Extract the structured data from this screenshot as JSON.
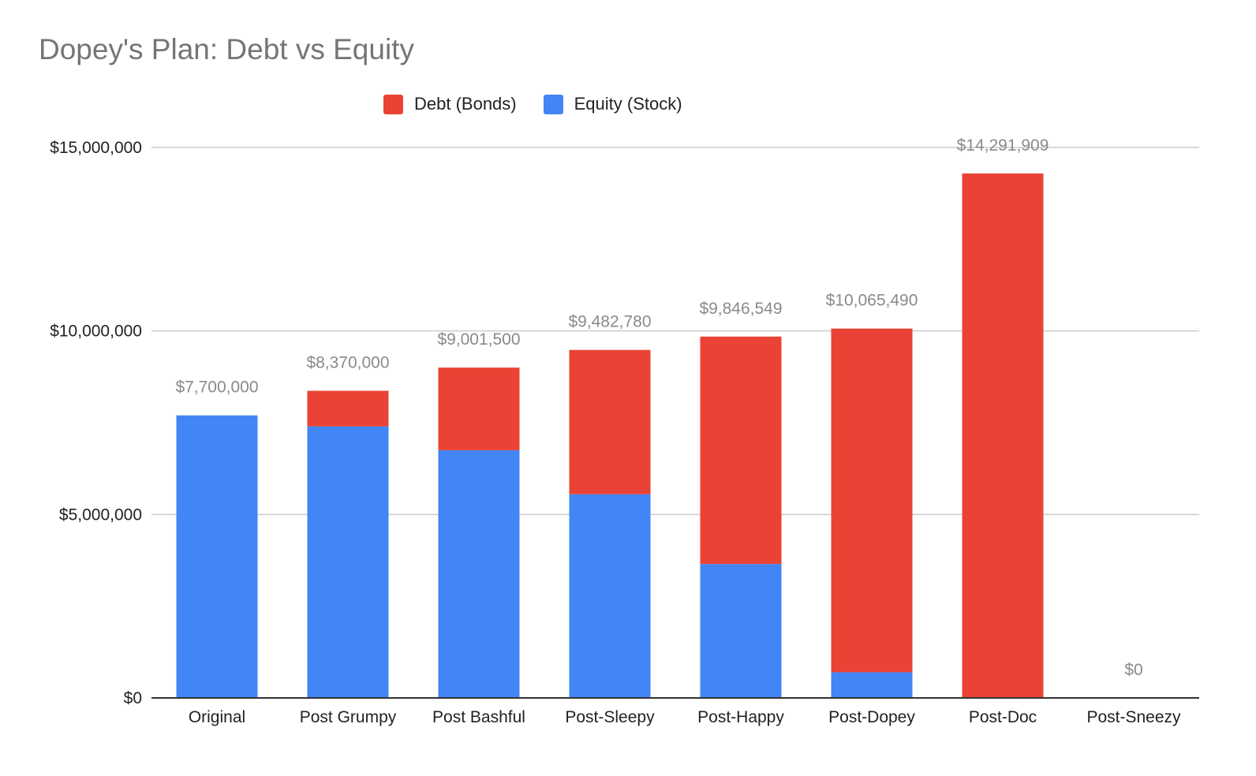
{
  "chart_data": {
    "type": "bar",
    "stacked": true,
    "title": "Dopey's Plan: Debt vs Equity",
    "xlabel": "",
    "ylabel": "",
    "categories": [
      "Original",
      "Post Grumpy",
      "Post Bashful",
      "Post-Sleepy",
      "Post-Happy",
      "Post-Dopey",
      "Post-Doc",
      "Post-Sneezy"
    ],
    "series": [
      {
        "name": "Equity (Stock)",
        "color": "#4285f4",
        "values": [
          7700000,
          7400000,
          6750000,
          5550000,
          3650000,
          700000,
          0,
          0
        ]
      },
      {
        "name": "Debt (Bonds)",
        "color": "#ea4335",
        "values": [
          0,
          970000,
          2251500,
          3932780,
          6196549,
          9365490,
          14291909,
          0
        ]
      }
    ],
    "totals": [
      7700000,
      8370000,
      9001500,
      9482780,
      9846549,
      10065490,
      14291909,
      0
    ],
    "total_labels": [
      "$7,700,000",
      "$8,370,000",
      "$9,001,500",
      "$9,482,780",
      "$9,846,549",
      "$10,065,490",
      "$14,291,909",
      "$0"
    ],
    "ylim": [
      0,
      15000000
    ],
    "yticks": [
      0,
      5000000,
      10000000,
      15000000
    ],
    "ytick_labels": [
      "$0",
      "$5,000,000",
      "$10,000,000",
      "$15,000,000"
    ],
    "grid": true,
    "legend_position": "top-center",
    "legend_order": [
      "Debt (Bonds)",
      "Equity (Stock)"
    ],
    "colors": {
      "gridline": "#cccccc",
      "baseline": "#333333",
      "title": "#757575",
      "data_label": "#8a8a8a"
    }
  }
}
